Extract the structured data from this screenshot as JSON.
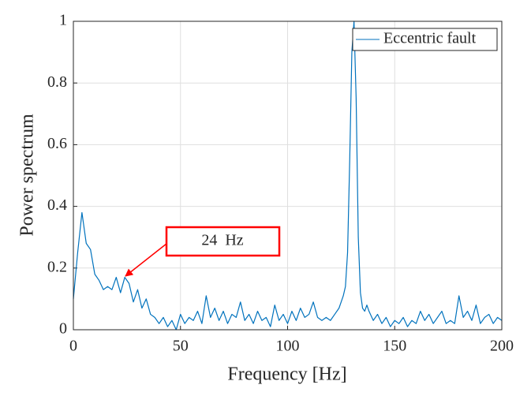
{
  "chart_data": {
    "type": "line",
    "x_label": "Frequency [Hz]",
    "y_label": "Power spectrum",
    "x": [
      0,
      2,
      4,
      6,
      8,
      10,
      12,
      14,
      16,
      18,
      20,
      22,
      24,
      26,
      28,
      30,
      32,
      34,
      36,
      38,
      40,
      42,
      44,
      46,
      48,
      50,
      52,
      54,
      56,
      58,
      60,
      62,
      64,
      66,
      68,
      70,
      72,
      74,
      76,
      78,
      80,
      82,
      84,
      86,
      88,
      90,
      92,
      94,
      96,
      98,
      100,
      102,
      104,
      106,
      108,
      110,
      112,
      114,
      116,
      118,
      120,
      122,
      124,
      125,
      126,
      127,
      128,
      129,
      130,
      131,
      132,
      133,
      134,
      135,
      136,
      137,
      138,
      140,
      142,
      144,
      146,
      148,
      150,
      152,
      154,
      156,
      158,
      160,
      162,
      164,
      166,
      168,
      170,
      172,
      174,
      176,
      178,
      180,
      182,
      184,
      186,
      188,
      190,
      192,
      194,
      196,
      198,
      200
    ],
    "series": [
      {
        "name": "Eccentric fault",
        "color": "#0072bd",
        "values": [
          0.1,
          0.25,
          0.38,
          0.28,
          0.26,
          0.18,
          0.16,
          0.13,
          0.14,
          0.13,
          0.17,
          0.12,
          0.17,
          0.15,
          0.09,
          0.13,
          0.07,
          0.1,
          0.05,
          0.04,
          0.02,
          0.04,
          0.01,
          0.03,
          0.0,
          0.05,
          0.02,
          0.04,
          0.03,
          0.06,
          0.02,
          0.11,
          0.04,
          0.07,
          0.03,
          0.06,
          0.02,
          0.05,
          0.04,
          0.09,
          0.03,
          0.05,
          0.02,
          0.06,
          0.03,
          0.04,
          0.01,
          0.08,
          0.03,
          0.05,
          0.02,
          0.06,
          0.03,
          0.07,
          0.04,
          0.05,
          0.09,
          0.04,
          0.03,
          0.04,
          0.03,
          0.05,
          0.07,
          0.09,
          0.11,
          0.14,
          0.25,
          0.55,
          0.9,
          1.0,
          0.75,
          0.3,
          0.12,
          0.07,
          0.06,
          0.08,
          0.06,
          0.03,
          0.05,
          0.02,
          0.04,
          0.01,
          0.03,
          0.02,
          0.04,
          0.01,
          0.03,
          0.02,
          0.06,
          0.03,
          0.05,
          0.02,
          0.04,
          0.06,
          0.02,
          0.03,
          0.02,
          0.11,
          0.04,
          0.06,
          0.03,
          0.08,
          0.02,
          0.04,
          0.05,
          0.02,
          0.04,
          0.03
        ]
      }
    ],
    "xlim": [
      0,
      200
    ],
    "xticks": [
      0,
      50,
      100,
      150,
      200
    ],
    "ylim": [
      0,
      1
    ],
    "yticks": [
      0,
      0.2,
      0.4,
      0.6,
      0.8,
      1
    ],
    "grid": true,
    "legend": "upper right",
    "annotations": [
      {
        "text": "24  Hz"
      }
    ]
  }
}
